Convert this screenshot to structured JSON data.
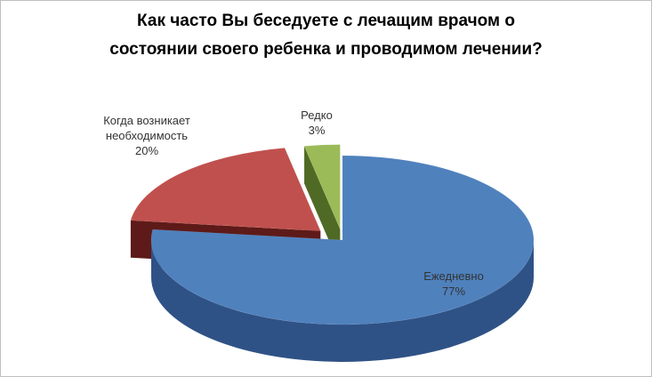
{
  "chart_data": {
    "type": "pie",
    "style": "3d-exploded",
    "title": "Как часто Вы беседуете с лечащим врачом о состоянии своего ребенка и проводимом лечении?",
    "title_lines": [
      "Как часто Вы беседуете с лечащим врачом о",
      "состоянии своего ребенка и проводимом лечении?"
    ],
    "legend": "none",
    "slices": [
      {
        "label": "Ежедневно",
        "label_lines": [
          "Ежедневно"
        ],
        "value": 77,
        "value_label": "77%",
        "color": "#4f81bd",
        "side_color": "#2f5286"
      },
      {
        "label": "Когда возникает необходимость",
        "label_lines": [
          "Когда возникает",
          "необходимость"
        ],
        "value": 20,
        "value_label": "20%",
        "color": "#c0504d",
        "side_color": "#5e1a18"
      },
      {
        "label": "Редко",
        "label_lines": [
          "Редко"
        ],
        "value": 3,
        "value_label": "3%",
        "color": "#9bbb59",
        "side_color": "#4f6a24"
      }
    ]
  }
}
